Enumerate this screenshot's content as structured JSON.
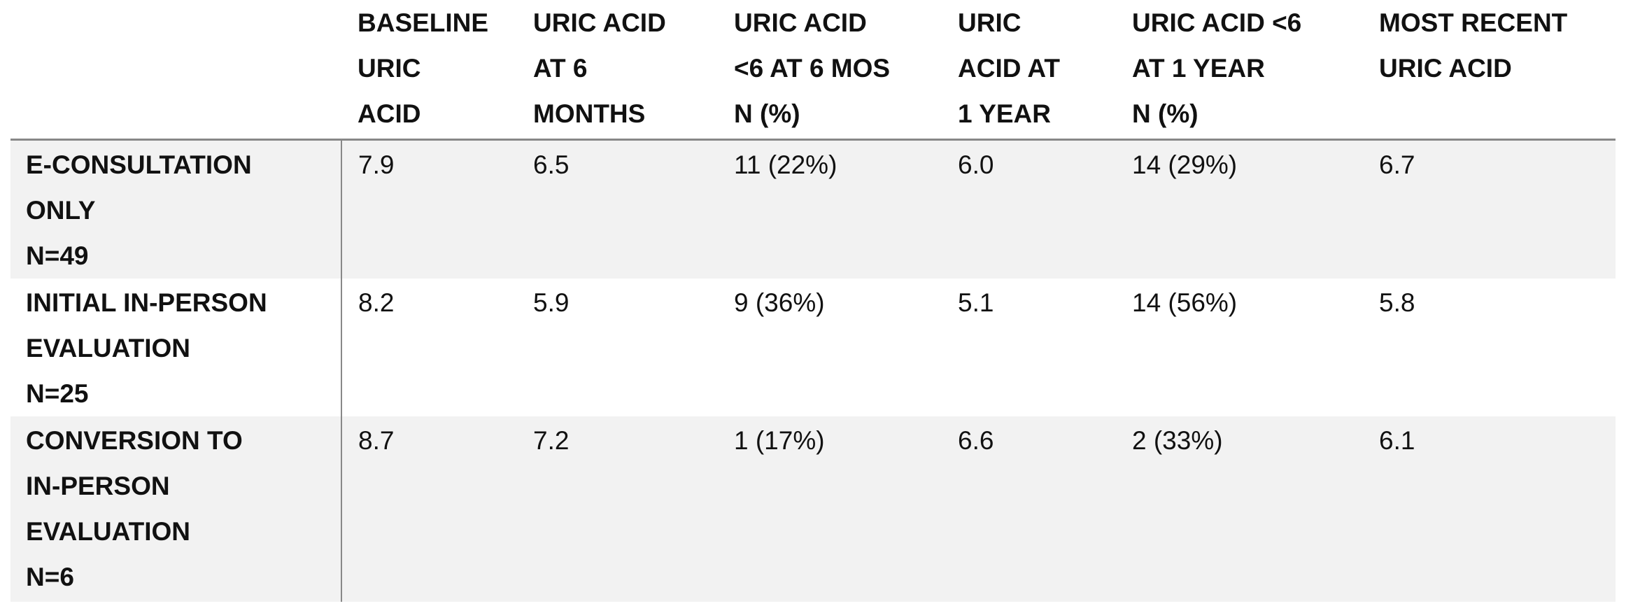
{
  "table": {
    "header": [
      [
        "BASELINE",
        "URIC",
        "ACID"
      ],
      [
        "URIC ACID",
        "AT 6",
        "MONTHS"
      ],
      [
        "URIC ACID",
        "<6 AT 6 MOS",
        "N (%)"
      ],
      [
        "URIC",
        "ACID AT",
        "1 YEAR"
      ],
      [
        "URIC ACID <6",
        "AT 1 YEAR",
        "N (%)"
      ],
      [
        "MOST RECENT",
        "URIC ACID"
      ]
    ],
    "rows": [
      {
        "label": [
          "E-CONSULTATION",
          "ONLY",
          "N=49"
        ],
        "cells": [
          "7.9",
          "6.5",
          "11 (22%)",
          "6.0",
          "14 (29%)",
          "6.7"
        ]
      },
      {
        "label": [
          "INITIAL IN-PERSON",
          "EVALUATION",
          "N=25"
        ],
        "cells": [
          "8.2",
          "5.9",
          "9 (36%)",
          "5.1",
          "14 (56%)",
          "5.8"
        ]
      },
      {
        "label": [
          "CONVERSION TO",
          "IN-PERSON",
          "EVALUATION",
          "N=6"
        ],
        "cells": [
          "8.7",
          "7.2",
          "1 (17%)",
          "6.6",
          "2 (33%)",
          "6.1"
        ]
      }
    ]
  }
}
